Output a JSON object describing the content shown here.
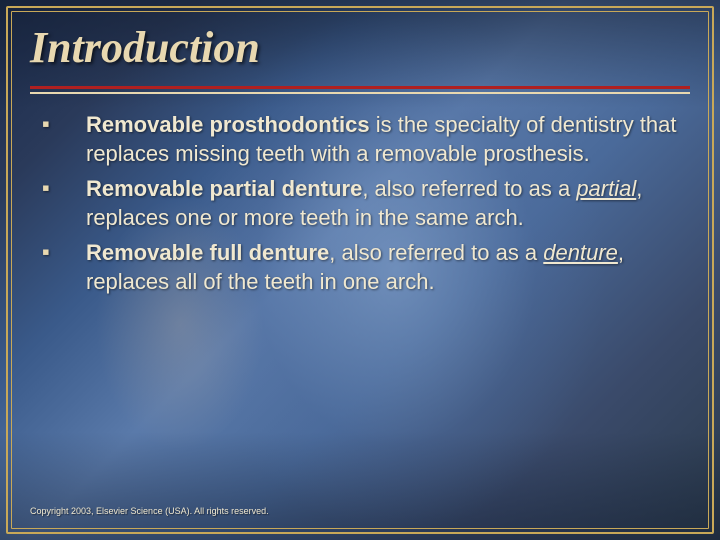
{
  "slide": {
    "title": "Introduction",
    "title_color": "#e8d8b0",
    "title_fontsize": 44,
    "rule_color_primary": "#b02020",
    "rule_color_secondary": "#e8d8b0",
    "border_color": "#c8a858",
    "bullet_color": "#e8d8b0",
    "bullet_glyph": "▪",
    "bullet_fontsize": 22,
    "text_color": "#f0e8d0",
    "body_fontsize": 22,
    "background_color": "#2a4a7a",
    "bullets": [
      {
        "bold_lead": "Removable prosthodontics",
        "rest_a": " is the specialty of dentistry that replaces missing teeth with a removable prosthesis.",
        "italic_term": "",
        "rest_b": ""
      },
      {
        "bold_lead": "Removable partial denture",
        "rest_a": ", also referred to as a ",
        "italic_term": "partial",
        "rest_b": ", replaces one or more teeth in the same arch."
      },
      {
        "bold_lead": "Removable full denture",
        "rest_a": ", also referred to as a ",
        "italic_term": "denture",
        "rest_b": ", replaces all of the teeth in one arch."
      }
    ],
    "copyright": "Copyright 2003, Elsevier Science (USA). All rights reserved.",
    "copyright_color": "#f0e8d0",
    "copyright_fontsize": 9
  }
}
